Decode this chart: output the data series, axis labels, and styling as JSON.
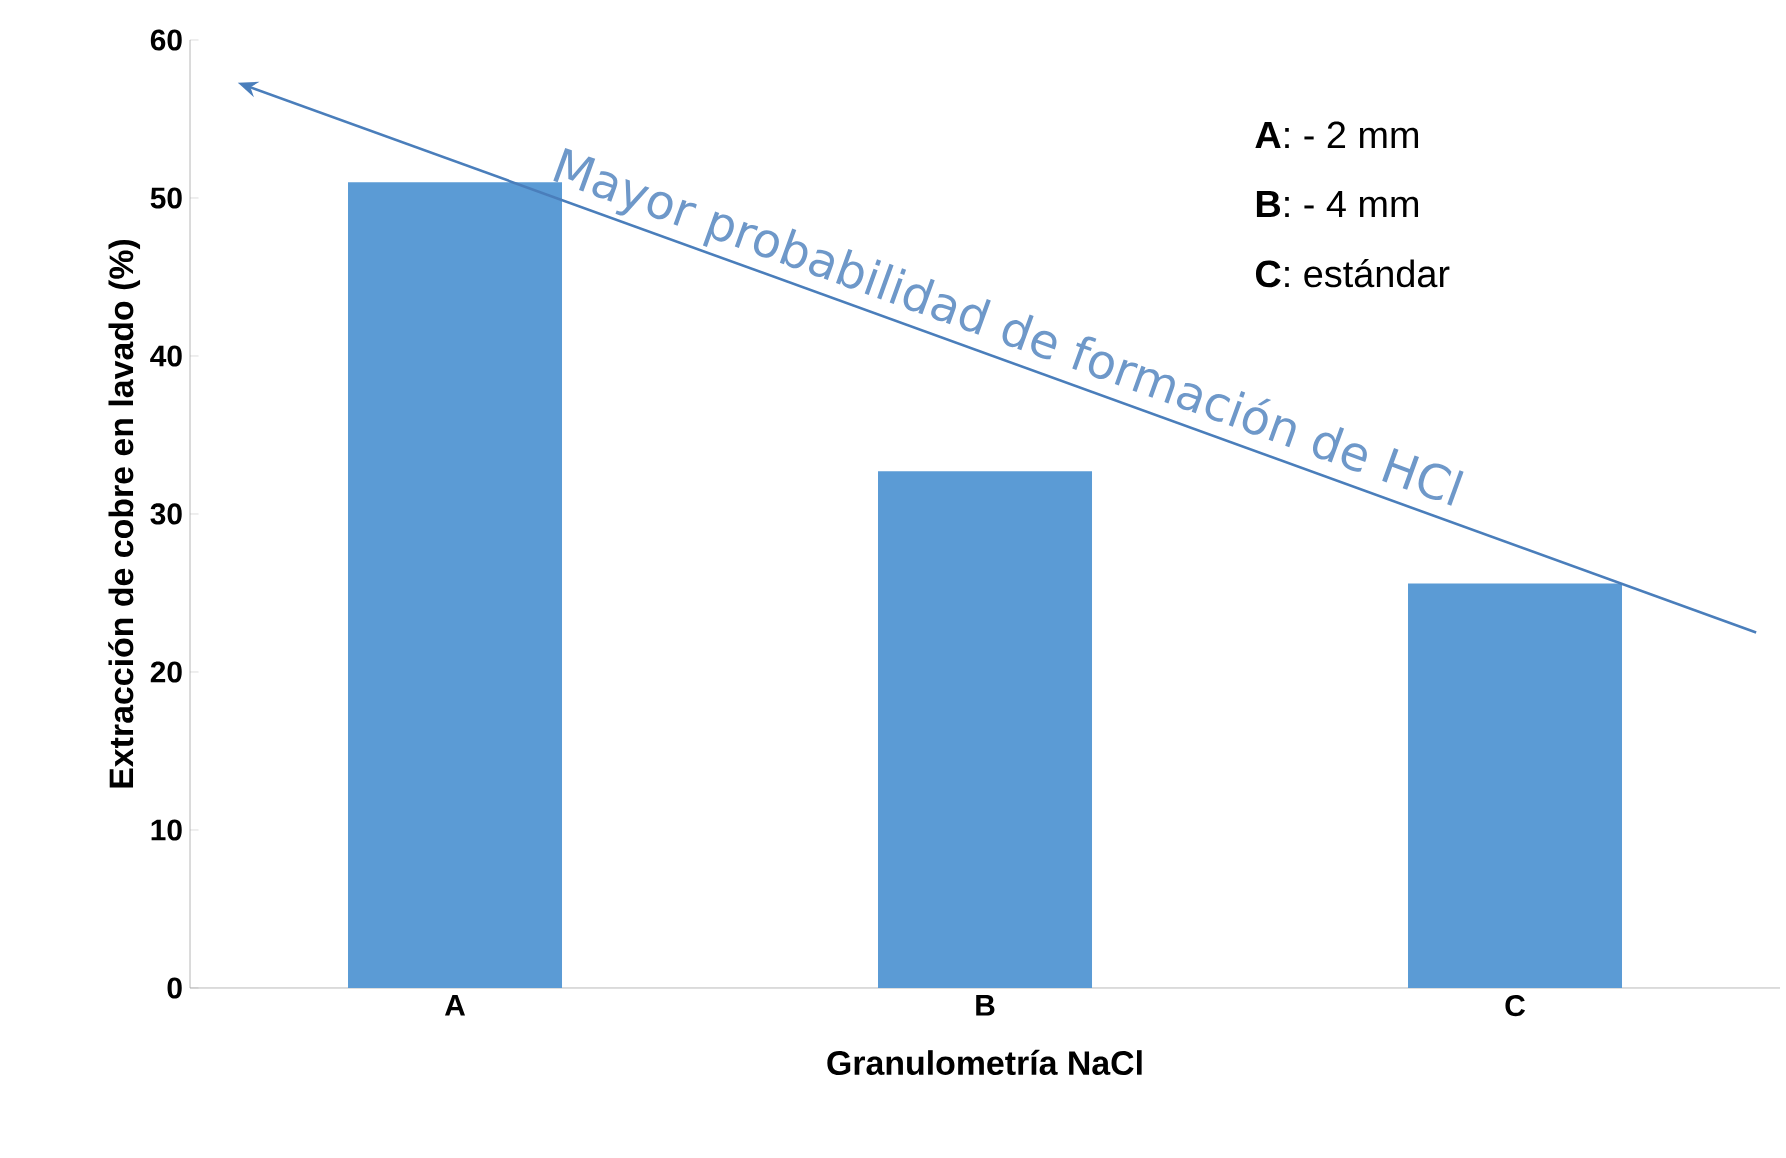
{
  "chart_data": {
    "type": "bar",
    "xlabel": "Granulometría NaCl",
    "ylabel": "Extracción de cobre en lavado (%)",
    "categories": [
      "A",
      "B",
      "C"
    ],
    "values": [
      51,
      32.7,
      25.6
    ],
    "color": "#5b9bd5",
    "ylim": [
      0,
      60
    ],
    "yticks": [
      0,
      10,
      20,
      30,
      40,
      50,
      60
    ],
    "grid": false,
    "annotations": [
      "Mayor probabilidad de formación de HCl",
      "**A**: - 2 mm",
      "**B**: - 4 mm",
      "**C**: estándar"
    ]
  }
}
